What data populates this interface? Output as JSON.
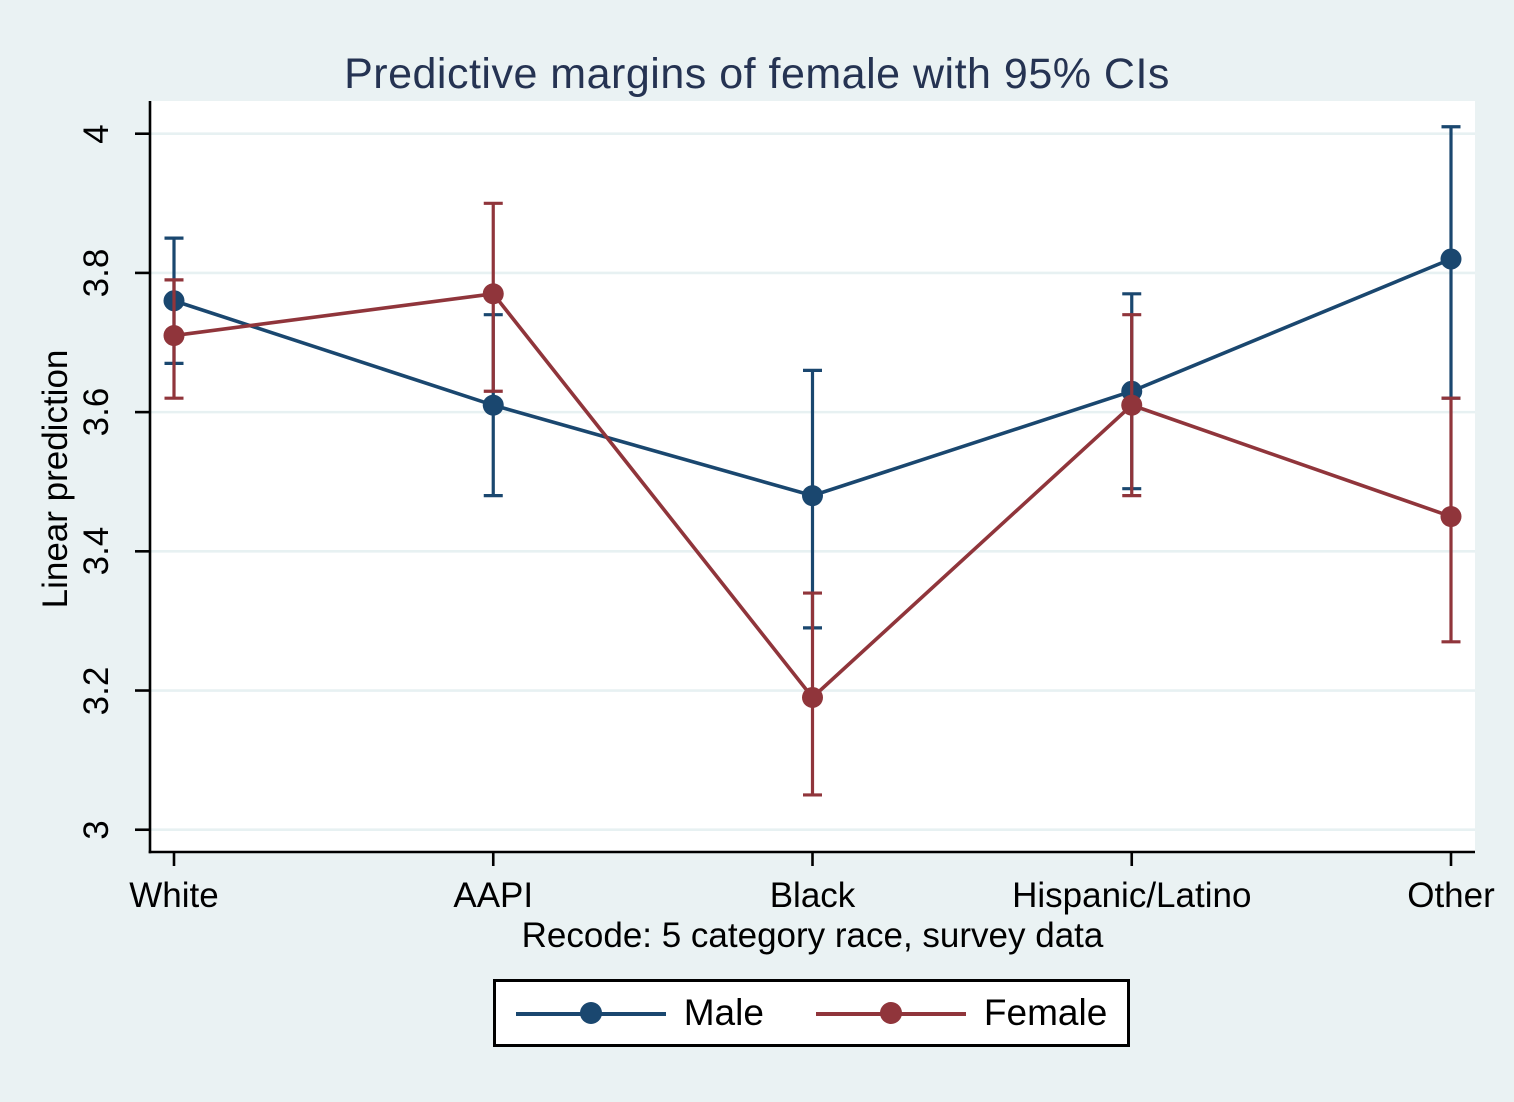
{
  "figure": {
    "background": "#eaf2f3",
    "plot_background": "#ffffff",
    "gridline_color": "#e7f1f2",
    "axis_color": "#000000",
    "title_color": "#253352"
  },
  "chart_data": {
    "type": "line",
    "title": "Predictive margins of female with 95% CIs",
    "ylabel": "Linear prediction",
    "xlabel": "Recode: 5 category race, survey data",
    "categories": [
      "White",
      "AAPI",
      "Black",
      "Hispanic/Latino",
      "Other"
    ],
    "ytick_values": [
      3,
      3.2,
      3.4,
      3.6,
      3.8,
      4
    ],
    "ytick_labels": [
      "3",
      "3.2",
      "3.4",
      "3.6",
      "3.8",
      "4"
    ],
    "ylim": [
      2.968,
      4.047
    ],
    "grid": true,
    "error_bars": "95% CI",
    "legend_position": "bottom",
    "series": [
      {
        "name": "Male",
        "color": "#1a476f",
        "values": [
          3.76,
          3.61,
          3.48,
          3.63,
          3.82
        ],
        "ci_low": [
          3.67,
          3.48,
          3.29,
          3.49,
          3.62
        ],
        "ci_high": [
          3.85,
          3.74,
          3.66,
          3.77,
          4.01
        ]
      },
      {
        "name": "Female",
        "color": "#90353b",
        "values": [
          3.71,
          3.77,
          3.19,
          3.61,
          3.45
        ],
        "ci_low": [
          3.62,
          3.63,
          3.05,
          3.48,
          3.27
        ],
        "ci_high": [
          3.79,
          3.9,
          3.34,
          3.74,
          3.62
        ]
      }
    ]
  }
}
